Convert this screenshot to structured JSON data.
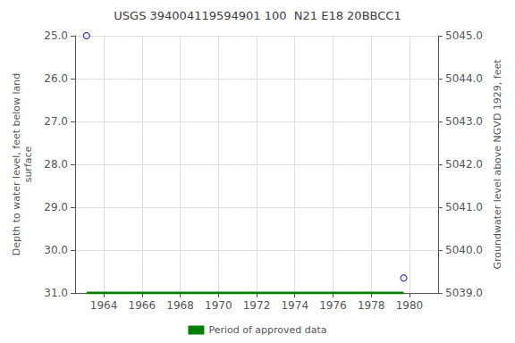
{
  "chart_data": {
    "type": "scatter",
    "title": "USGS 394004119594901 100  N21 E18 20BBCC1",
    "y_label": "Depth to water level, feet below land\nsurface",
    "y2_label": "Groundwater level above NGVD 1929, feet",
    "xlim": [
      1962.5,
      1981.5
    ],
    "xticks": [
      1964,
      1966,
      1968,
      1970,
      1972,
      1974,
      1976,
      1978,
      1980
    ],
    "ylim": [
      31.0,
      25.0
    ],
    "yticks": [
      {
        "value": 25.0,
        "label": "25.0"
      },
      {
        "value": 26.0,
        "label": "26.0"
      },
      {
        "value": 27.0,
        "label": "27.0"
      },
      {
        "value": 28.0,
        "label": "28.0"
      },
      {
        "value": 29.0,
        "label": "29.0"
      },
      {
        "value": 30.0,
        "label": "30.0"
      },
      {
        "value": 31.0,
        "label": "31.0"
      }
    ],
    "y2lim": [
      5039.0,
      5045.0
    ],
    "y2ticks": [
      {
        "value": 5039.0,
        "label": "5039.0"
      },
      {
        "value": 5040.0,
        "label": "5040.0"
      },
      {
        "value": 5041.0,
        "label": "5041.0"
      },
      {
        "value": 5042.0,
        "label": "5042.0"
      },
      {
        "value": 5043.0,
        "label": "5043.0"
      },
      {
        "value": 5044.0,
        "label": "5044.0"
      },
      {
        "value": 5045.0,
        "label": "5045.0"
      }
    ],
    "grid": true,
    "legend": "bottom",
    "series": [
      {
        "type": "scatter",
        "color": "#0000cc",
        "marker": "open_circle",
        "x": [
          1963.1,
          1979.7
        ],
        "values": [
          25.0,
          30.65
        ]
      },
      {
        "type": "line",
        "name": "Period of approved data",
        "color": "#008000",
        "line_style": "solid",
        "x": [
          1963.1,
          1979.7
        ],
        "values": [
          31.0,
          31.0
        ]
      }
    ]
  }
}
